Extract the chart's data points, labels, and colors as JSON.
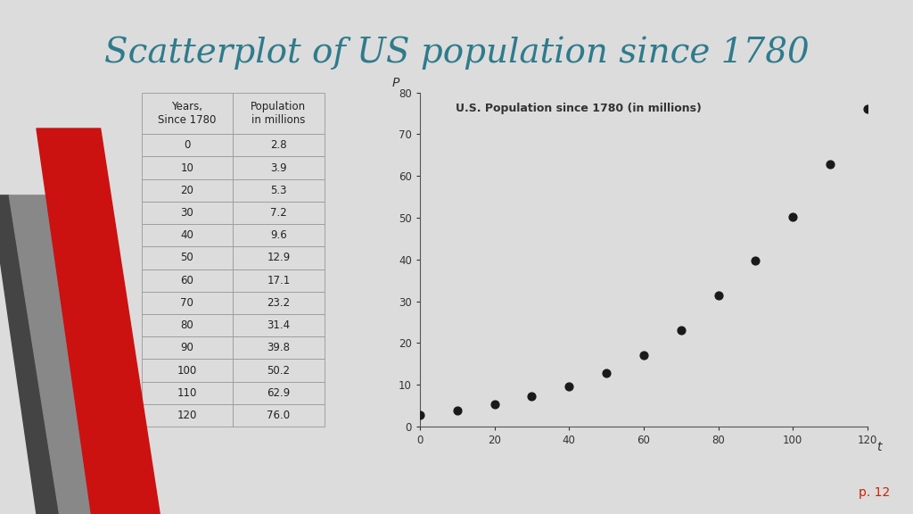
{
  "title": "Scatterplot of US population since 1780",
  "title_color": "#2E7B8C",
  "title_fontsize": 28,
  "background_color": "#DCDCDC",
  "table_headers": [
    "Years,\nSince 1780",
    "Population\nin millions"
  ],
  "years": [
    0,
    10,
    20,
    30,
    40,
    50,
    60,
    70,
    80,
    90,
    100,
    110,
    120
  ],
  "population": [
    2.8,
    3.9,
    5.3,
    7.2,
    9.6,
    12.9,
    17.1,
    23.2,
    31.4,
    39.8,
    50.2,
    62.9,
    76.0
  ],
  "scatter_title": "U.S. Population since 1780 (in millions)",
  "scatter_title_fontsize": 9,
  "xlabel": "t",
  "ylabel": "P",
  "xlim": [
    0,
    120
  ],
  "ylim": [
    0,
    80
  ],
  "xticks": [
    0,
    20,
    40,
    60,
    80,
    100,
    120
  ],
  "yticks": [
    0,
    10,
    20,
    30,
    40,
    50,
    60,
    70,
    80
  ],
  "dot_color": "#1A1A1A",
  "dot_size": 40,
  "page_number": "p. 12",
  "page_number_color": "#CC2200",
  "red_strip_color": "#CC1111",
  "gray_strip_color": "#888888",
  "dark_strip_color": "#444444"
}
